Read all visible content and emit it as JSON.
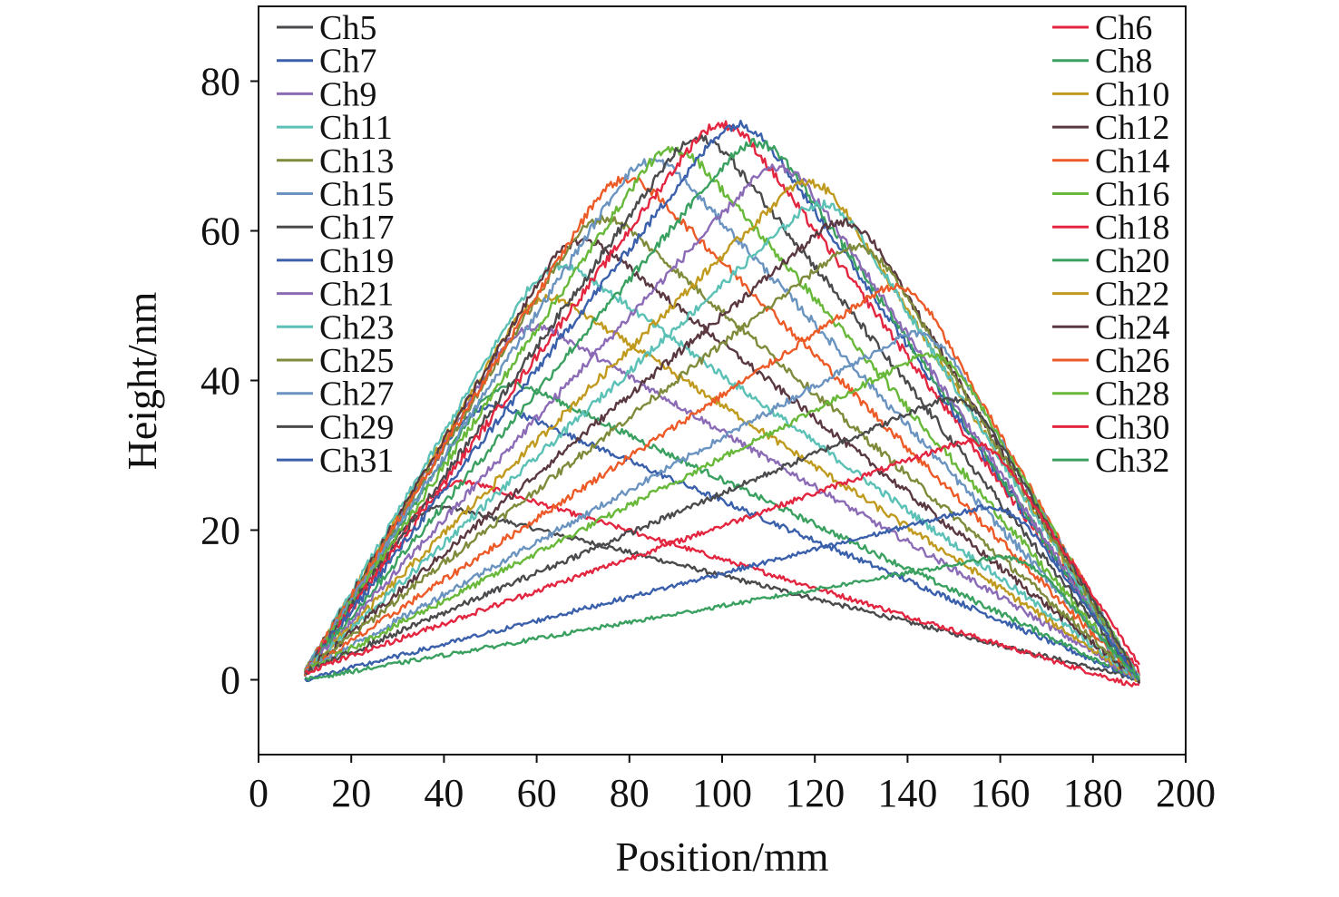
{
  "chart_data": {
    "type": "line",
    "title": "",
    "xlabel": "Position/mm",
    "ylabel": "Height/nm",
    "xlim": [
      0,
      200
    ],
    "ylim": [
      -10,
      90
    ],
    "xticks": [
      0,
      20,
      40,
      60,
      80,
      100,
      120,
      140,
      160,
      180,
      200
    ],
    "yticks": [
      0,
      20,
      40,
      60,
      80
    ],
    "grid": false,
    "legend_placement": "top, two columns (left and right)",
    "x_range_of_data": [
      10,
      190
    ],
    "series": [
      {
        "name": "Ch5",
        "color": "#4a4a4d",
        "points": [
          [
            10,
            1
          ],
          [
            35,
            24
          ],
          [
            190,
            0
          ]
        ]
      },
      {
        "name": "Ch6",
        "color": "#e3263f",
        "points": [
          [
            10,
            1
          ],
          [
            40,
            27.5
          ],
          [
            190,
            -1
          ]
        ]
      },
      {
        "name": "Ch7",
        "color": "#3a5fab",
        "points": [
          [
            10,
            1
          ],
          [
            47,
            38
          ],
          [
            190,
            0
          ]
        ]
      },
      {
        "name": "Ch8",
        "color": "#3aa060",
        "points": [
          [
            10,
            1
          ],
          [
            52,
            41
          ],
          [
            190,
            0
          ]
        ]
      },
      {
        "name": "Ch9",
        "color": "#8b6bb5",
        "points": [
          [
            10,
            1
          ],
          [
            57,
            49
          ],
          [
            190,
            0
          ]
        ]
      },
      {
        "name": "Ch10",
        "color": "#c09a1e",
        "points": [
          [
            10,
            1
          ],
          [
            60,
            53
          ],
          [
            190,
            0
          ]
        ]
      },
      {
        "name": "Ch11",
        "color": "#5bc0b5",
        "points": [
          [
            10,
            1
          ],
          [
            63,
            57.5
          ],
          [
            190,
            0
          ]
        ]
      },
      {
        "name": "Ch12",
        "color": "#5a3840",
        "points": [
          [
            10,
            1
          ],
          [
            68,
            61
          ],
          [
            190,
            0
          ]
        ]
      },
      {
        "name": "Ch13",
        "color": "#7f8a3a",
        "points": [
          [
            10,
            1
          ],
          [
            73,
            64
          ],
          [
            190,
            0
          ]
        ]
      },
      {
        "name": "Ch14",
        "color": "#ec5a28",
        "points": [
          [
            10,
            1
          ],
          [
            78,
            69.5
          ],
          [
            190,
            0
          ]
        ]
      },
      {
        "name": "Ch15",
        "color": "#6a93c0",
        "points": [
          [
            10,
            1
          ],
          [
            84,
            72
          ],
          [
            190,
            0
          ]
        ]
      },
      {
        "name": "Ch16",
        "color": "#68b83a",
        "points": [
          [
            10,
            1
          ],
          [
            89,
            73.5
          ],
          [
            190,
            0
          ]
        ]
      },
      {
        "name": "Ch17",
        "color": "#4a4a4d",
        "points": [
          [
            10,
            1
          ],
          [
            95,
            75
          ],
          [
            190,
            0
          ]
        ]
      },
      {
        "name": "Ch18",
        "color": "#e3263f",
        "points": [
          [
            10,
            1
          ],
          [
            100,
            77
          ],
          [
            190,
            1
          ]
        ]
      },
      {
        "name": "Ch19",
        "color": "#3a5fab",
        "points": [
          [
            10,
            1
          ],
          [
            104,
            77
          ],
          [
            190,
            0
          ]
        ]
      },
      {
        "name": "Ch20",
        "color": "#3aa060",
        "points": [
          [
            10,
            1
          ],
          [
            108,
            74.5
          ],
          [
            190,
            0
          ]
        ]
      },
      {
        "name": "Ch21",
        "color": "#8b6bb5",
        "points": [
          [
            10,
            1
          ],
          [
            113,
            71
          ],
          [
            190,
            0
          ]
        ]
      },
      {
        "name": "Ch22",
        "color": "#c09a1e",
        "points": [
          [
            10,
            1
          ],
          [
            120,
            69
          ],
          [
            190,
            0
          ]
        ]
      },
      {
        "name": "Ch23",
        "color": "#5bc0b5",
        "points": [
          [
            10,
            1
          ],
          [
            123,
            66
          ],
          [
            190,
            0
          ]
        ]
      },
      {
        "name": "Ch24",
        "color": "#5a3840",
        "points": [
          [
            10,
            1
          ],
          [
            128,
            63.5
          ],
          [
            190,
            0
          ]
        ]
      },
      {
        "name": "Ch25",
        "color": "#7f8a3a",
        "points": [
          [
            10,
            1
          ],
          [
            131,
            60
          ],
          [
            190,
            0
          ]
        ]
      },
      {
        "name": "Ch26",
        "color": "#ec5a28",
        "points": [
          [
            10,
            1
          ],
          [
            140,
            54.5
          ],
          [
            190,
            0
          ]
        ]
      },
      {
        "name": "Ch27",
        "color": "#6a93c0",
        "points": [
          [
            10,
            1
          ],
          [
            145,
            48
          ],
          [
            190,
            0
          ]
        ]
      },
      {
        "name": "Ch28",
        "color": "#68b83a",
        "points": [
          [
            10,
            1
          ],
          [
            148,
            45
          ],
          [
            190,
            0
          ]
        ]
      },
      {
        "name": "Ch29",
        "color": "#4a4a4d",
        "points": [
          [
            10,
            1
          ],
          [
            153,
            39
          ],
          [
            190,
            0
          ]
        ]
      },
      {
        "name": "Ch30",
        "color": "#e3263f",
        "points": [
          [
            10,
            1
          ],
          [
            157,
            33
          ],
          [
            190,
            2
          ]
        ]
      },
      {
        "name": "Ch31",
        "color": "#3a5fab",
        "points": [
          [
            10,
            0
          ],
          [
            162,
            24
          ],
          [
            190,
            0
          ]
        ]
      },
      {
        "name": "Ch32",
        "color": "#3aa060",
        "points": [
          [
            10,
            0
          ],
          [
            165,
            17
          ],
          [
            190,
            0
          ]
        ]
      }
    ]
  }
}
